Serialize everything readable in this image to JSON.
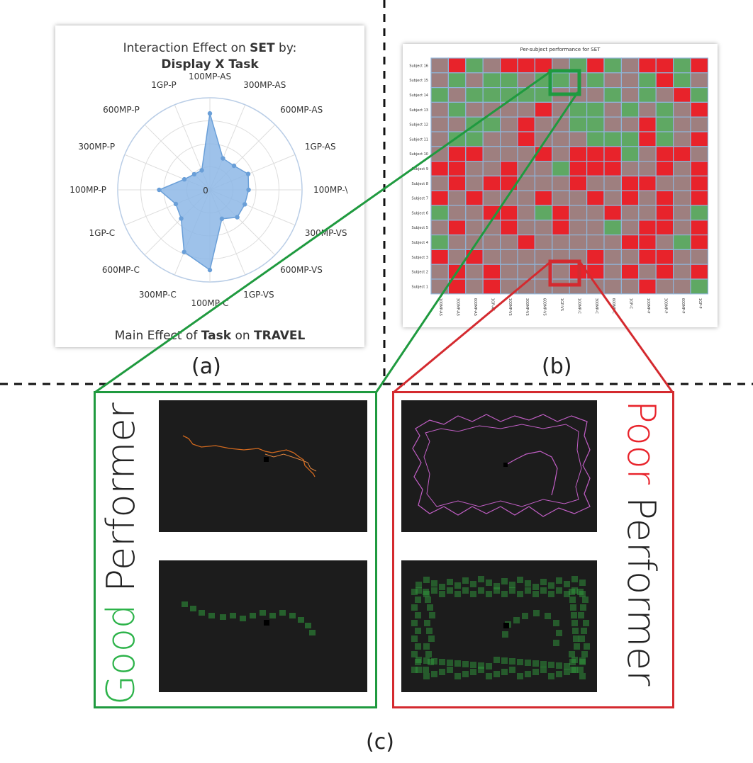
{
  "radar": {
    "title_line1_prefix": "Interaction Effect on ",
    "title_line1_bold": "SET",
    "title_line1_suffix": " by:",
    "title_line2": "Display X Task",
    "bottom_prefix": "Main Effect of ",
    "bottom_bold1": "Task",
    "bottom_mid": " on ",
    "bottom_bold2": "TRAVEL",
    "center_label": "0",
    "axes": [
      "100MP-AS",
      "300MP-AS",
      "600MP-AS",
      "1GP-AS",
      "100MP-\\",
      "300MP-VS",
      "600MP-VS",
      "1GP-VS",
      "100MP-C",
      "300MP-C",
      "600MP-C",
      "1GP-C",
      "100MP-P",
      "300MP-P",
      "600MP-P",
      "1GP-P"
    ],
    "values": [
      0.83,
      0.37,
      0.37,
      0.45,
      0.42,
      0.41,
      0.42,
      0.34,
      0.87,
      0.73,
      0.44,
      0.4,
      0.55,
      0.3,
      0.24,
      0.23
    ],
    "fill": "#8db7e6",
    "stroke": "#6a9fd8"
  },
  "heatmap": {
    "title": "Per-subject performance for SET",
    "rows": [
      "Subject 16",
      "Subject 15",
      "Subject 14",
      "Subject 13",
      "Subject 12",
      "Subject 11",
      "Subject 10",
      "Subject 9",
      "Subject 8",
      "Subject 7",
      "Subject 6",
      "Subject 5",
      "Subject 4",
      "Subject 3",
      "Subject 2",
      "Subject 1"
    ],
    "cols": [
      "100MP-AS",
      "300MP-AS",
      "600MP-AS",
      "1GP-AS",
      "100MP-VS",
      "300MP-VS",
      "600MP-VS",
      "1GP-VS",
      "100MP-C",
      "300MP-C",
      "600MP-C",
      "1GP-C",
      "100MP-P",
      "300MP-P",
      "600MP-P",
      "1GP-P"
    ],
    "cells": [
      [
        0,
        2,
        1,
        0,
        2,
        2,
        2,
        0,
        1,
        2,
        1,
        0,
        2,
        2,
        1,
        2
      ],
      [
        0,
        1,
        0,
        1,
        1,
        0,
        1,
        1,
        0,
        1,
        0,
        0,
        1,
        2,
        1,
        0
      ],
      [
        1,
        0,
        1,
        1,
        1,
        1,
        1,
        0,
        0,
        0,
        1,
        0,
        1,
        0,
        2,
        1
      ],
      [
        0,
        1,
        0,
        0,
        0,
        0,
        2,
        0,
        1,
        1,
        0,
        1,
        0,
        1,
        0,
        2
      ],
      [
        0,
        0,
        1,
        1,
        0,
        2,
        0,
        0,
        1,
        1,
        0,
        0,
        2,
        1,
        0,
        0
      ],
      [
        0,
        1,
        1,
        0,
        0,
        2,
        0,
        0,
        0,
        1,
        1,
        1,
        2,
        1,
        0,
        2
      ],
      [
        0,
        2,
        2,
        0,
        0,
        0,
        2,
        0,
        2,
        2,
        2,
        1,
        0,
        2,
        2,
        0
      ],
      [
        2,
        2,
        0,
        0,
        2,
        0,
        0,
        1,
        2,
        2,
        2,
        0,
        0,
        2,
        0,
        2
      ],
      [
        0,
        2,
        0,
        2,
        2,
        0,
        0,
        0,
        2,
        0,
        0,
        2,
        2,
        0,
        0,
        2
      ],
      [
        2,
        0,
        2,
        0,
        0,
        0,
        2,
        0,
        0,
        2,
        0,
        2,
        0,
        2,
        0,
        2
      ],
      [
        1,
        0,
        0,
        2,
        2,
        0,
        1,
        2,
        0,
        0,
        2,
        0,
        0,
        2,
        0,
        1
      ],
      [
        0,
        2,
        0,
        0,
        2,
        0,
        0,
        2,
        0,
        0,
        1,
        0,
        2,
        2,
        0,
        2
      ],
      [
        1,
        0,
        0,
        0,
        0,
        2,
        0,
        0,
        0,
        0,
        0,
        2,
        2,
        0,
        1,
        2
      ],
      [
        2,
        0,
        2,
        0,
        0,
        0,
        0,
        0,
        0,
        2,
        0,
        0,
        2,
        2,
        0,
        0
      ],
      [
        0,
        2,
        0,
        2,
        0,
        0,
        0,
        0,
        2,
        2,
        0,
        2,
        0,
        2,
        0,
        2
      ],
      [
        0,
        2,
        0,
        2,
        0,
        0,
        0,
        0,
        0,
        0,
        0,
        0,
        2,
        0,
        0,
        1
      ]
    ],
    "palette": {
      "neutral": "#9e7f7f",
      "good": "#5fa863",
      "poor": "#e8232b",
      "grid": "#8fb4d8"
    }
  },
  "captions": {
    "a": "(a)",
    "b": "(b)",
    "c": "(c)"
  },
  "good": {
    "word1": "Good",
    "word2": " Performer",
    "color": "#2db34a"
  },
  "poor": {
    "word1": "Poor",
    "word2": " Performer",
    "color": "#e8232b"
  },
  "colors": {
    "green_box": "#1f9a3f",
    "red_box": "#d42a2f",
    "trail_good": "#d2691e",
    "trail_poor": "#c35fc7",
    "heat_glow": "#2f9a3c"
  }
}
